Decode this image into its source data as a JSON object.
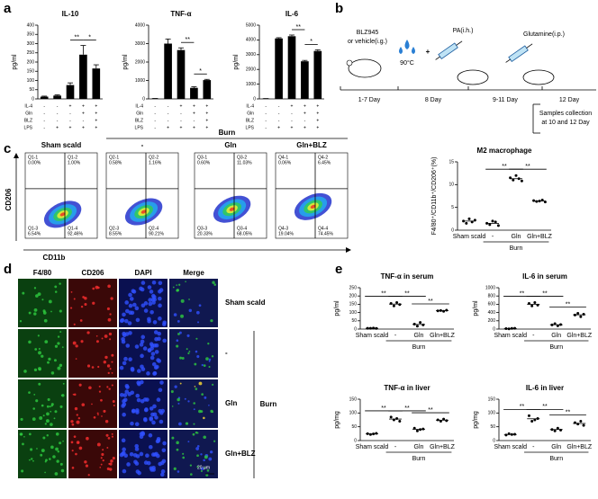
{
  "panel_labels": [
    "a",
    "b",
    "c",
    "d",
    "e"
  ],
  "chart_data": [
    {
      "type": "bar",
      "title": "IL-10",
      "ylabel": "pg/ml",
      "color": "#000000",
      "values": [
        12,
        18,
        75,
        240,
        165
      ],
      "errors": [
        3,
        4,
        12,
        50,
        20
      ],
      "ylim": [
        0,
        400
      ],
      "yticks": [
        0,
        50,
        100,
        150,
        200,
        250,
        300,
        350,
        400
      ],
      "significance": [
        {
          "label": "**",
          "between": [
            2,
            3
          ]
        },
        {
          "label": "*",
          "between": [
            3,
            4
          ]
        }
      ],
      "conditions": [
        {
          "name": "IL-4",
          "values": [
            "-",
            "-",
            "+",
            "+",
            "+"
          ]
        },
        {
          "name": "Gln",
          "values": [
            "-",
            "-",
            "-",
            "+",
            "+"
          ]
        },
        {
          "name": "BLZ",
          "values": [
            "-",
            "-",
            "-",
            "-",
            "+"
          ]
        },
        {
          "name": "LPS",
          "values": [
            "-",
            "+",
            "+",
            "+",
            "+"
          ]
        }
      ]
    },
    {
      "type": "bar",
      "title": "TNF-α",
      "ylabel": "pg/ml",
      "color": "#000000",
      "values": [
        20,
        3000,
        2650,
        600,
        1020
      ],
      "errors": [
        5,
        250,
        120,
        60,
        40
      ],
      "ylim": [
        0,
        4000
      ],
      "yticks": [
        0,
        1000,
        2000,
        3000,
        4000
      ],
      "significance": [
        {
          "label": "**",
          "between": [
            2,
            3
          ]
        },
        {
          "label": "*",
          "between": [
            3,
            4
          ]
        }
      ],
      "conditions": [
        {
          "name": "IL-4",
          "values": [
            "-",
            "-",
            "+",
            "+",
            "+"
          ]
        },
        {
          "name": "Gln",
          "values": [
            "-",
            "-",
            "-",
            "+",
            "+"
          ]
        },
        {
          "name": "BLZ",
          "values": [
            "-",
            "-",
            "-",
            "-",
            "+"
          ]
        },
        {
          "name": "LPS",
          "values": [
            "-",
            "+",
            "+",
            "+",
            "+"
          ]
        }
      ]
    },
    {
      "type": "bar",
      "title": "IL-6",
      "ylabel": "pg/ml",
      "color": "#000000",
      "values": [
        20,
        4100,
        4250,
        2550,
        3250
      ],
      "errors": [
        5,
        50,
        80,
        60,
        80
      ],
      "ylim": [
        0,
        5000
      ],
      "yticks": [
        0,
        1000,
        2000,
        3000,
        4000,
        5000
      ],
      "significance": [
        {
          "label": "**",
          "between": [
            2,
            3
          ]
        },
        {
          "label": "*",
          "between": [
            3,
            4
          ]
        }
      ],
      "conditions": [
        {
          "name": "IL-4",
          "values": [
            "-",
            "-",
            "+",
            "+",
            "+"
          ]
        },
        {
          "name": "Gln",
          "values": [
            "-",
            "-",
            "-",
            "+",
            "+"
          ]
        },
        {
          "name": "BLZ",
          "values": [
            "-",
            "-",
            "-",
            "-",
            "+"
          ]
        },
        {
          "name": "LPS",
          "values": [
            "-",
            "+",
            "+",
            "+",
            "+"
          ]
        }
      ]
    },
    {
      "type": "dot",
      "title": "M2 macrophage",
      "ylabel": "F4/80⁺/CD11b⁺/CD206⁺(%)",
      "color": "#000000",
      "categories": [
        "Sham scald",
        "-",
        "Gln",
        "Gln+BLZ"
      ],
      "group_label": "Burn",
      "values": [
        [
          2.0,
          1.5,
          2.5,
          1.8,
          2.2
        ],
        [
          1.5,
          1.2,
          2.0,
          1.8,
          1.0
        ],
        [
          11.5,
          11.0,
          12.0,
          11.3,
          10.8
        ],
        [
          6.5,
          6.3,
          6.4,
          6.6,
          6.2
        ]
      ],
      "means": [
        2.0,
        1.5,
        11.3,
        6.4
      ],
      "ylim": [
        0,
        15
      ],
      "yticks": [
        0,
        5,
        10,
        15
      ],
      "significance": [
        {
          "label": "**",
          "between": [
            1,
            2
          ]
        },
        {
          "label": "**",
          "between": [
            2,
            3
          ]
        }
      ]
    },
    {
      "type": "dot",
      "title": "TNF-α in serum",
      "ylabel": "pg/ml",
      "color": "#000000",
      "categories": [
        "Sham scald",
        "-",
        "Gln",
        "Gln+BLZ"
      ],
      "group_label": "Burn",
      "values": [
        [
          5,
          5,
          6,
          4
        ],
        [
          155,
          140,
          160,
          148
        ],
        [
          30,
          18,
          40,
          25
        ],
        [
          110,
          112,
          107,
          114
        ]
      ],
      "means": [
        5,
        151,
        28,
        111
      ],
      "ylim": [
        0,
        250
      ],
      "yticks": [
        0,
        50,
        100,
        150,
        200,
        250
      ],
      "significance": [
        {
          "label": "**",
          "between": [
            0,
            1
          ]
        },
        {
          "label": "**",
          "between": [
            1,
            2
          ]
        },
        {
          "label": "**",
          "between": [
            2,
            3
          ]
        }
      ]
    },
    {
      "type": "dot",
      "title": "IL-6  in serum",
      "ylabel": "pg/ml",
      "color": "#000000",
      "categories": [
        "Sham scald",
        "-",
        "Gln",
        "Gln+BLZ"
      ],
      "group_label": "Burn",
      "values": [
        [
          10,
          5,
          15,
          20
        ],
        [
          620,
          560,
          640,
          580
        ],
        [
          100,
          130,
          80,
          110
        ],
        [
          340,
          380,
          300,
          360
        ]
      ],
      "means": [
        12,
        600,
        105,
        345
      ],
      "ylim": [
        0,
        1000
      ],
      "yticks": [
        0,
        200,
        400,
        600,
        800,
        1000
      ],
      "significance": [
        {
          "label": "**",
          "between": [
            0,
            1
          ]
        },
        {
          "label": "**",
          "between": [
            1,
            2
          ]
        },
        {
          "label": "**",
          "between": [
            2,
            3
          ]
        }
      ]
    },
    {
      "type": "dot",
      "title": "TNF-α in liver",
      "ylabel": "pg/mg",
      "color": "#000000",
      "categories": [
        "Sham scald",
        "-",
        "Gln",
        "Gln+BLZ"
      ],
      "group_label": "Burn",
      "values": [
        [
          25,
          22,
          24,
          26
        ],
        [
          85,
          75,
          80,
          70
        ],
        [
          45,
          35,
          40,
          42
        ],
        [
          75,
          70,
          78,
          72
        ]
      ],
      "means": [
        24,
        78,
        41,
        74
      ],
      "ylim": [
        0,
        150
      ],
      "yticks": [
        0,
        50,
        100,
        150
      ],
      "significance": [
        {
          "label": "**",
          "between": [
            0,
            1
          ]
        },
        {
          "label": "**",
          "between": [
            1,
            2
          ]
        },
        {
          "label": "**",
          "between": [
            2,
            3
          ]
        }
      ]
    },
    {
      "type": "dot",
      "title": "IL-6  in liver",
      "ylabel": "pg/mg",
      "color": "#000000",
      "categories": [
        "Sham scald",
        "-",
        "Gln",
        "Gln+BLZ"
      ],
      "group_label": "Burn",
      "values": [
        [
          20,
          25,
          22,
          23
        ],
        [
          90,
          70,
          75,
          80
        ],
        [
          40,
          35,
          45,
          38
        ],
        [
          65,
          60,
          70,
          55
        ]
      ],
      "means": [
        22,
        79,
        40,
        62
      ],
      "ylim": [
        0,
        150
      ],
      "yticks": [
        0,
        50,
        100,
        150
      ],
      "significance": [
        {
          "label": "**",
          "between": [
            0,
            1
          ]
        },
        {
          "label": "**",
          "between": [
            1,
            2
          ]
        },
        {
          "label": "**",
          "between": [
            2,
            3
          ]
        }
      ]
    }
  ],
  "timeline": {
    "treatment_1": [
      "BLZ945",
      "or vehicle(i.g.)"
    ],
    "temperature": "90°C",
    "plus": "+",
    "treatment_2": "PA(i.h.)",
    "treatment_3": "Glutamine(i.p.)",
    "days": [
      "1-7 Day",
      "8 Day",
      "9-11 Day",
      "12 Day"
    ],
    "sampling": [
      "Samples collection",
      "at 10 and 12 Day"
    ]
  },
  "flow_cytometry": {
    "group_label": "Burn",
    "y_axis": "CD206",
    "x_axis": "CD11b",
    "plots": [
      {
        "title": "Sham scald",
        "quadrants": [
          {
            "name": "Q1-1",
            "percent": "0.00%"
          },
          {
            "name": "Q1-2",
            "percent": "1.00%"
          },
          {
            "name": "Q1-3",
            "percent": "6.54%"
          },
          {
            "name": "Q1-4",
            "percent": "92.46%"
          }
        ]
      },
      {
        "title": "-",
        "quadrants": [
          {
            "name": "Q2-1",
            "percent": "0.58%"
          },
          {
            "name": "Q2-2",
            "percent": "1.16%"
          },
          {
            "name": "Q2-3",
            "percent": "8.55%"
          },
          {
            "name": "Q2-4",
            "percent": "90.21%"
          }
        ]
      },
      {
        "title": "Gln",
        "quadrants": [
          {
            "name": "Q3-1",
            "percent": "0.60%"
          },
          {
            "name": "Q3-2",
            "percent": "11.03%"
          },
          {
            "name": "Q3-3",
            "percent": "20.33%"
          },
          {
            "name": "Q3-4",
            "percent": "68.05%"
          }
        ]
      },
      {
        "title": "Gln+BLZ",
        "quadrants": [
          {
            "name": "Q4-1",
            "percent": "0.06%"
          },
          {
            "name": "Q4-2",
            "percent": "6.45%"
          },
          {
            "name": "Q4-3",
            "percent": "19.04%"
          },
          {
            "name": "Q4-4",
            "percent": "74.45%"
          }
        ]
      }
    ]
  },
  "immunofluorescence": {
    "columns": [
      "F4/80",
      "CD206",
      "DAPI",
      "Merge"
    ],
    "rows": [
      "Sham scald",
      "-",
      "Gln",
      "Gln+BLZ"
    ],
    "group_label": "Burn",
    "scale_bar": "20 μm"
  }
}
